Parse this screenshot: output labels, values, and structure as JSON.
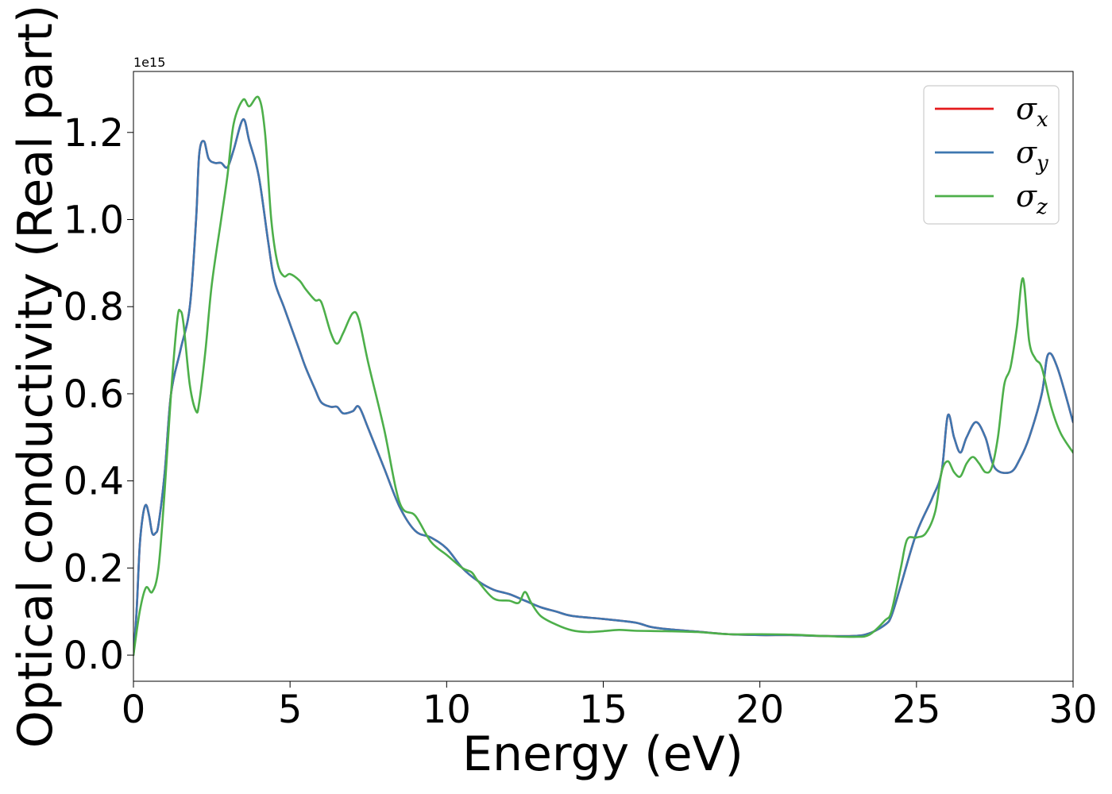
{
  "chart_data": {
    "type": "line",
    "title": "",
    "xlabel": "Energy (eV)",
    "ylabel": "Optical conductivity (Real part)",
    "y_offset_label": "1e15",
    "xlim": [
      0,
      30
    ],
    "ylim": [
      -0.06,
      1.34
    ],
    "x_ticks": [
      0,
      5,
      10,
      15,
      20,
      25,
      30
    ],
    "x_tick_labels": [
      "0",
      "5",
      "10",
      "15",
      "20",
      "25",
      "30"
    ],
    "y_ticks": [
      0.0,
      0.2,
      0.4,
      0.6,
      0.8,
      1.0,
      1.2
    ],
    "y_tick_labels": [
      "0.0",
      "0.2",
      "0.4",
      "0.6",
      "0.8",
      "1.0",
      "1.2"
    ],
    "grid": false,
    "legend_position": "top-right",
    "series": [
      {
        "name": "σx",
        "symbol": "σ",
        "subscript": "x",
        "color": "#e41a1c",
        "x": [
          0,
          0.1,
          0.2,
          0.3,
          0.4,
          0.5,
          0.6,
          0.7,
          0.8,
          1.0,
          1.2,
          1.5,
          1.8,
          2.0,
          2.1,
          2.25,
          2.4,
          2.6,
          2.8,
          3.0,
          3.2,
          3.5,
          3.7,
          4.0,
          4.3,
          4.5,
          4.8,
          5.0,
          5.3,
          5.5,
          5.8,
          6.0,
          6.3,
          6.5,
          6.7,
          7.0,
          7.2,
          7.5,
          8.0,
          8.5,
          9.0,
          9.5,
          10.0,
          10.5,
          11.0,
          11.5,
          12.0,
          12.5,
          13.0,
          13.5,
          14.0,
          15.0,
          16.0,
          16.5,
          17.0,
          18.0,
          19.0,
          20.0,
          21.0,
          22.0,
          23.0,
          23.5,
          24.0,
          24.2,
          24.5,
          25.0,
          25.5,
          25.8,
          26.0,
          26.2,
          26.4,
          26.6,
          26.9,
          27.2,
          27.5,
          28.0,
          28.3,
          28.6,
          29.0,
          29.2,
          29.5,
          30.0
        ],
        "y": [
          0.0,
          0.1,
          0.25,
          0.32,
          0.345,
          0.32,
          0.28,
          0.28,
          0.3,
          0.42,
          0.6,
          0.7,
          0.8,
          1.0,
          1.15,
          1.18,
          1.14,
          1.13,
          1.13,
          1.12,
          1.16,
          1.23,
          1.18,
          1.1,
          0.95,
          0.86,
          0.8,
          0.76,
          0.7,
          0.66,
          0.61,
          0.58,
          0.57,
          0.57,
          0.555,
          0.56,
          0.57,
          0.52,
          0.43,
          0.34,
          0.285,
          0.27,
          0.245,
          0.2,
          0.17,
          0.15,
          0.14,
          0.125,
          0.11,
          0.1,
          0.09,
          0.083,
          0.075,
          0.065,
          0.06,
          0.054,
          0.048,
          0.046,
          0.046,
          0.044,
          0.044,
          0.05,
          0.07,
          0.09,
          0.16,
          0.28,
          0.36,
          0.42,
          0.55,
          0.5,
          0.465,
          0.5,
          0.535,
          0.5,
          0.43,
          0.42,
          0.45,
          0.5,
          0.6,
          0.69,
          0.66,
          0.535
        ]
      },
      {
        "name": "σy",
        "symbol": "σ",
        "subscript": "y",
        "color": "#3e77b0",
        "x": [
          0,
          0.1,
          0.2,
          0.3,
          0.4,
          0.5,
          0.6,
          0.7,
          0.8,
          1.0,
          1.2,
          1.5,
          1.8,
          2.0,
          2.1,
          2.25,
          2.4,
          2.6,
          2.8,
          3.0,
          3.2,
          3.5,
          3.7,
          4.0,
          4.3,
          4.5,
          4.8,
          5.0,
          5.3,
          5.5,
          5.8,
          6.0,
          6.3,
          6.5,
          6.7,
          7.0,
          7.2,
          7.5,
          8.0,
          8.5,
          9.0,
          9.5,
          10.0,
          10.5,
          11.0,
          11.5,
          12.0,
          12.5,
          13.0,
          13.5,
          14.0,
          15.0,
          16.0,
          16.5,
          17.0,
          18.0,
          19.0,
          20.0,
          21.0,
          22.0,
          23.0,
          23.5,
          24.0,
          24.2,
          24.5,
          25.0,
          25.5,
          25.8,
          26.0,
          26.2,
          26.4,
          26.6,
          26.9,
          27.2,
          27.5,
          28.0,
          28.3,
          28.6,
          29.0,
          29.2,
          29.5,
          30.0
        ],
        "y": [
          0.0,
          0.1,
          0.25,
          0.32,
          0.345,
          0.32,
          0.28,
          0.28,
          0.3,
          0.42,
          0.6,
          0.7,
          0.8,
          1.0,
          1.15,
          1.18,
          1.14,
          1.13,
          1.13,
          1.12,
          1.16,
          1.23,
          1.18,
          1.1,
          0.95,
          0.86,
          0.8,
          0.76,
          0.7,
          0.66,
          0.61,
          0.58,
          0.57,
          0.57,
          0.555,
          0.56,
          0.57,
          0.52,
          0.43,
          0.34,
          0.285,
          0.27,
          0.245,
          0.2,
          0.17,
          0.15,
          0.14,
          0.125,
          0.11,
          0.1,
          0.09,
          0.083,
          0.075,
          0.065,
          0.06,
          0.054,
          0.048,
          0.046,
          0.046,
          0.044,
          0.044,
          0.05,
          0.07,
          0.09,
          0.16,
          0.28,
          0.36,
          0.42,
          0.55,
          0.5,
          0.465,
          0.5,
          0.535,
          0.5,
          0.43,
          0.42,
          0.45,
          0.5,
          0.6,
          0.69,
          0.66,
          0.535
        ]
      },
      {
        "name": "σz",
        "symbol": "σ",
        "subscript": "z",
        "color": "#4daf4a",
        "x": [
          0,
          0.2,
          0.4,
          0.6,
          0.8,
          1.0,
          1.2,
          1.4,
          1.5,
          1.6,
          1.8,
          2.0,
          2.1,
          2.3,
          2.5,
          2.8,
          3.0,
          3.2,
          3.5,
          3.7,
          4.0,
          4.2,
          4.4,
          4.6,
          4.8,
          5.0,
          5.3,
          5.5,
          5.8,
          6.0,
          6.3,
          6.5,
          6.7,
          7.0,
          7.2,
          7.5,
          8.0,
          8.5,
          9.0,
          9.5,
          10.0,
          10.5,
          10.8,
          11.0,
          11.5,
          12.0,
          12.3,
          12.5,
          12.7,
          13.0,
          13.5,
          14.0,
          14.5,
          15.0,
          15.5,
          16.0,
          17.0,
          18.0,
          19.0,
          20.0,
          21.0,
          22.0,
          23.0,
          23.5,
          24.0,
          24.2,
          24.5,
          24.7,
          25.0,
          25.3,
          25.6,
          25.8,
          26.0,
          26.2,
          26.4,
          26.6,
          26.8,
          27.0,
          27.2,
          27.4,
          27.6,
          27.8,
          28.0,
          28.2,
          28.4,
          28.6,
          28.8,
          29.0,
          29.3,
          29.6,
          30.0
        ],
        "y": [
          0.0,
          0.1,
          0.155,
          0.145,
          0.2,
          0.38,
          0.6,
          0.77,
          0.79,
          0.76,
          0.62,
          0.56,
          0.58,
          0.7,
          0.85,
          1.0,
          1.1,
          1.22,
          1.275,
          1.26,
          1.28,
          1.2,
          1.0,
          0.9,
          0.87,
          0.875,
          0.86,
          0.84,
          0.815,
          0.81,
          0.74,
          0.715,
          0.74,
          0.785,
          0.77,
          0.67,
          0.52,
          0.35,
          0.32,
          0.26,
          0.23,
          0.2,
          0.19,
          0.17,
          0.13,
          0.125,
          0.12,
          0.145,
          0.12,
          0.09,
          0.07,
          0.057,
          0.053,
          0.055,
          0.058,
          0.056,
          0.055,
          0.053,
          0.048,
          0.048,
          0.047,
          0.044,
          0.042,
          0.047,
          0.08,
          0.1,
          0.2,
          0.265,
          0.27,
          0.28,
          0.33,
          0.42,
          0.445,
          0.42,
          0.41,
          0.44,
          0.455,
          0.44,
          0.42,
          0.43,
          0.5,
          0.62,
          0.66,
          0.75,
          0.865,
          0.72,
          0.68,
          0.66,
          0.57,
          0.51,
          0.465
        ]
      }
    ]
  }
}
